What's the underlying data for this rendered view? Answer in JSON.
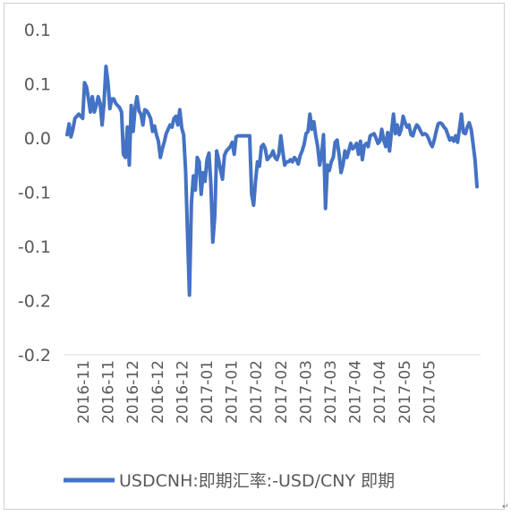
{
  "chart_data": {
    "type": "line",
    "title": "",
    "xlabel": "",
    "ylabel": "",
    "ylim": [
      -0.2,
      0.1
    ],
    "y_ticks": [
      {
        "value": 0.1,
        "label": "0.1"
      },
      {
        "value": 0.05,
        "label": "0.1"
      },
      {
        "value": 0.0,
        "label": "0.0"
      },
      {
        "value": -0.05,
        "label": "-0.1"
      },
      {
        "value": -0.1,
        "label": "-0.1"
      },
      {
        "value": -0.15,
        "label": "-0.2"
      },
      {
        "value": -0.2,
        "label": "-0.2"
      }
    ],
    "x_tick_labels": [
      "2016-11",
      "2016-11",
      "2016-12",
      "2016-12",
      "2016-12",
      "2017-01",
      "2017-01",
      "2017-02",
      "2017-02",
      "2017-03",
      "2017-03",
      "2017-04",
      "2017-04",
      "2017-05",
      "2017-05"
    ],
    "legend_position": "bottom",
    "grid": false,
    "series": [
      {
        "name": "USDCNH:即期汇率:-USD/CNY 即期",
        "color": "#4472C4",
        "values": [
          0.003,
          0.013,
          0.001,
          0.008,
          0.018,
          0.02,
          0.022,
          0.02,
          0.018,
          0.051,
          0.047,
          0.036,
          0.024,
          0.038,
          0.024,
          0.03,
          0.038,
          0.032,
          0.012,
          0.032,
          0.066,
          0.052,
          0.027,
          0.036,
          0.036,
          0.032,
          0.03,
          0.028,
          0.024,
          -0.015,
          -0.018,
          0.01,
          -0.025,
          0.03,
          0.006,
          0.028,
          0.038,
          0.025,
          0.022,
          0.012,
          0.026,
          0.025,
          0.022,
          0.018,
          0.006,
          0.011,
          0.003,
          -0.003,
          -0.018,
          -0.01,
          -0.004,
          0.004,
          0.008,
          0.012,
          0.01,
          0.018,
          0.02,
          0.012,
          0.026,
          0.009,
          0.003,
          -0.03,
          -0.09,
          -0.145,
          -0.06,
          -0.035,
          -0.048,
          -0.018,
          -0.022,
          -0.052,
          -0.032,
          -0.04,
          -0.02,
          -0.014,
          -0.042,
          -0.096,
          -0.072,
          -0.012,
          -0.02,
          -0.03,
          -0.038,
          -0.016,
          -0.012,
          -0.01,
          -0.008,
          -0.004,
          -0.015,
          0.001,
          0.002,
          0.002,
          0.002,
          0.002,
          0.002,
          0.002,
          0.002,
          -0.052,
          -0.062,
          -0.04,
          -0.022,
          -0.026,
          -0.008,
          -0.006,
          -0.01,
          -0.02,
          -0.018,
          -0.016,
          -0.012,
          -0.018,
          -0.02,
          -0.015,
          0.002,
          -0.012,
          -0.025,
          -0.022,
          -0.022,
          -0.02,
          -0.022,
          -0.018,
          -0.02,
          -0.024,
          -0.016,
          -0.012,
          -0.006,
          0.004,
          0.006,
          0.022,
          0.008,
          0.015,
          0.002,
          -0.008,
          -0.025,
          -0.015,
          0.003,
          -0.065,
          -0.025,
          -0.03,
          -0.022,
          -0.018,
          -0.004,
          -0.002,
          -0.015,
          -0.032,
          -0.025,
          -0.012,
          -0.018,
          -0.012,
          -0.005,
          -0.01,
          -0.008,
          -0.005,
          -0.015,
          -0.003,
          -0.02,
          -0.007,
          -0.005,
          -0.008,
          0.002,
          0.003,
          0.004,
          0.0,
          -0.005,
          -0.003,
          0.008,
          -0.002,
          -0.008,
          0.005,
          -0.012,
          0.006,
          0.022,
          0.004,
          0.012,
          0.003,
          0.008,
          0.02,
          0.014,
          0.01,
          0.012,
          0.003,
          0.002,
          0.008,
          0.012,
          0.01,
          0.006,
          0.003,
          0.004,
          0.003,
          0.0,
          -0.005,
          -0.008,
          -0.002,
          0.006,
          0.013,
          0.014,
          0.013,
          0.01,
          0.008,
          0.003,
          -0.002,
          0.0,
          -0.003,
          0.002,
          -0.004,
          0.009,
          0.022,
          0.005,
          0.004,
          0.01,
          0.014,
          0.008,
          -0.006,
          -0.02,
          -0.045
        ]
      }
    ]
  }
}
